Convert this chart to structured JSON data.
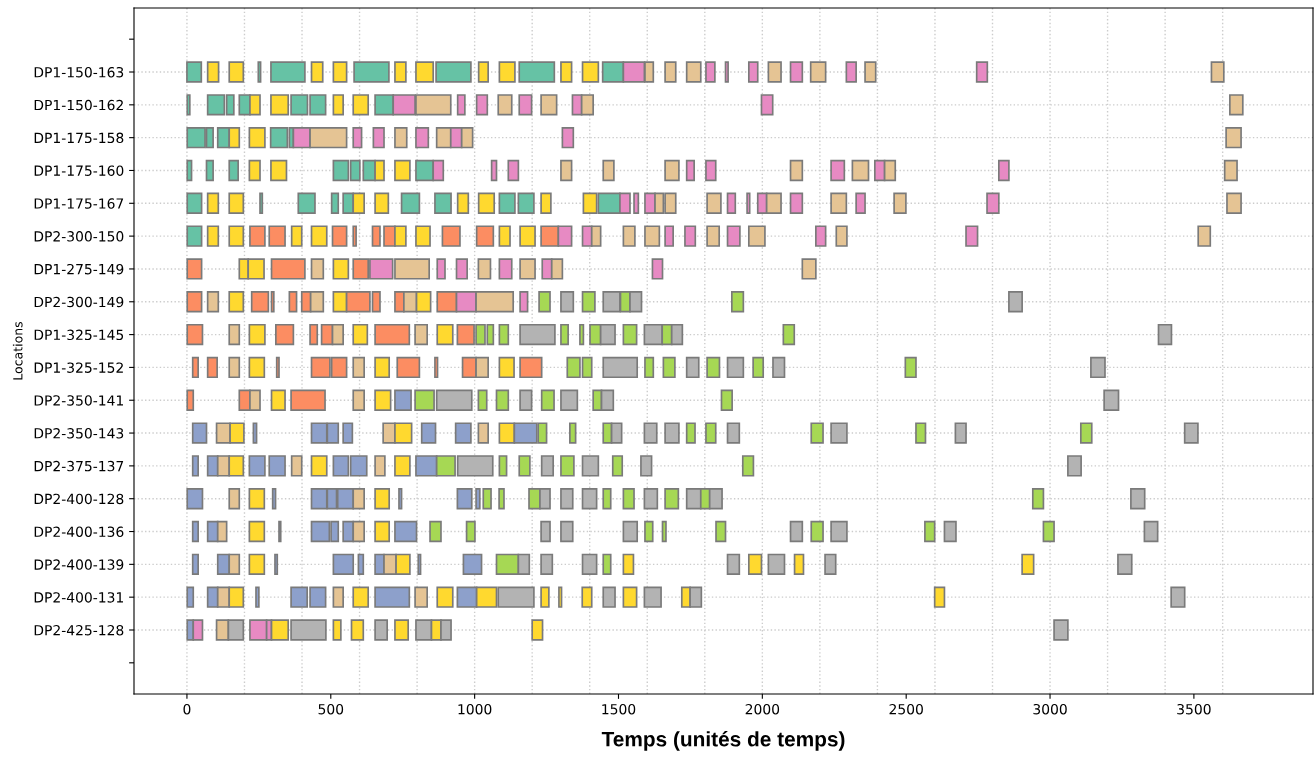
{
  "chart_data": {
    "type": "bar",
    "orientation": "horizontal",
    "xlabel": "Temps (unités de temps)",
    "ylabel": "Locations",
    "grid": true,
    "categories": [
      null,
      "DP1-150-163",
      "DP1-150-162",
      "DP1-175-158",
      "DP1-175-160",
      "DP1-175-167",
      "DP2-300-150",
      "DP1-275-149",
      "DP2-300-149",
      "DP1-325-145",
      "DP1-325-152",
      "DP2-350-141",
      "DP2-350-143",
      "DP2-375-137",
      "DP2-400-128",
      "DP2-400-136",
      "DP2-400-139",
      "DP2-400-131",
      "DP2-425-128",
      null
    ],
    "xlim": [
      -184,
      3914
    ],
    "xticks": [
      0,
      500,
      1000,
      1500,
      2000,
      2500,
      3000,
      3500,
      {
        "value": 0,
        "label": null
      },
      {
        "value": 200,
        "label": null
      },
      {
        "value": 400,
        "label": null
      },
      {
        "value": 600,
        "label": null
      },
      {
        "value": 800,
        "label": null
      },
      {
        "value": 1000,
        "label": null
      },
      {
        "value": 1200,
        "label": null
      },
      {
        "value": 1400,
        "label": null
      },
      {
        "value": 1600,
        "label": null
      },
      {
        "value": 1800,
        "label": null
      },
      {
        "value": 2000,
        "label": null
      },
      {
        "value": 2200,
        "label": null
      },
      {
        "value": 2400,
        "label": null
      },
      {
        "value": 2600,
        "label": null
      },
      {
        "value": 2800,
        "label": null
      },
      {
        "value": 3000,
        "label": null
      },
      {
        "value": 3200,
        "label": null
      },
      {
        "value": 3400,
        "label": null
      },
      {
        "value": 3600,
        "label": null
      }
    ],
    "series": [
      {
        "base": [
          null,
          0,
          1,
          1,
          1,
          1,
          1,
          1,
          1,
          1,
          20,
          1,
          20,
          20,
          1,
          20,
          20,
          1,
          1,
          null
        ],
        "values": [
          null,
          50,
          9,
          62,
          15,
          50,
          50,
          50,
          50,
          53,
          19,
          21,
          48,
          19,
          53,
          19,
          19,
          21,
          21,
          null
        ],
        "colors": [
          null,
          "#66c2a5",
          "#66c2a5",
          "#66c2a5",
          "#66c2a5",
          "#66c2a5",
          "#66c2a5",
          "#fc8d62",
          "#fc8d62",
          "#fc8d62",
          "#fc8d62",
          "#fc8d62",
          "#8da0cb",
          "#8da0cb",
          "#8da0cb",
          "#8da0cb",
          "#8da0cb",
          "#8da0cb",
          "#8da0cb",
          null
        ]
      },
      {
        "base": [
          null,
          72,
          72,
          68,
          68,
          72,
          72,
          182,
          72,
          147,
          72,
          182,
          103,
          72,
          147,
          72,
          107,
          72,
          22,
          null
        ],
        "values": [
          null,
          38,
          58,
          23,
          23,
          37,
          37,
          31,
          37,
          35,
          33,
          37,
          47,
          35,
          35,
          35,
          40,
          35,
          32,
          null
        ],
        "colors": [
          null,
          "#ffd92f",
          "#66c2a5",
          "#66c2a5",
          "#66c2a5",
          "#ffd92f",
          "#ffd92f",
          "#ffd92f",
          "#e5c494",
          "#e5c494",
          "#fc8d62",
          "#fc8d62",
          "#e5c494",
          "#8da0cb",
          "#e5c494",
          "#8da0cb",
          "#8da0cb",
          "#8da0cb",
          "#e78ac3",
          null
        ]
      },
      {
        "base": [
          null,
          147,
          138,
          107,
          147,
          147,
          147,
          213,
          147,
          217,
          147,
          219,
          150,
          107,
          217,
          107,
          147,
          107,
          103,
          null
        ],
        "values": [
          null,
          49,
          25,
          40,
          31,
          49,
          49,
          55,
          49,
          54,
          35,
          35,
          48,
          40,
          52,
          31,
          35,
          40,
          41,
          null
        ],
        "colors": [
          null,
          "#ffd92f",
          "#66c2a5",
          "#66c2a5",
          "#66c2a5",
          "#ffd92f",
          "#ffd92f",
          "#ffd92f",
          "#ffd92f",
          "#ffd92f",
          "#e5c494",
          "#e5c494",
          "#ffd92f",
          "#e5c494",
          "#ffd92f",
          "#e5c494",
          "#e5c494",
          "#e5c494",
          "#e5c494",
          null
        ]
      },
      {
        "base": [
          null,
          248,
          182,
          147,
          217,
          254,
          219,
          294,
          225,
          309,
          217,
          294,
          231,
          147,
          298,
          217,
          217,
          147,
          144,
          null
        ],
        "values": [
          null,
          8,
          37,
          35,
          37,
          8,
          52,
          116,
          58,
          61,
          52,
          47,
          11,
          49,
          10,
          52,
          52,
          49,
          52,
          null
        ],
        "colors": [
          null,
          "#66c2a5",
          "#66c2a5",
          "#ffd92f",
          "#ffd92f",
          "#66c2a5",
          "#fc8d62",
          "#fc8d62",
          "#fc8d62",
          "#fc8d62",
          "#ffd92f",
          "#ffd92f",
          "#8da0cb",
          "#ffd92f",
          "#8da0cb",
          "#ffd92f",
          "#ffd92f",
          "#ffd92f",
          "#b3b3b3",
          null
        ]
      },
      {
        "base": [
          null,
          292,
          219,
          217,
          292,
          387,
          286,
          433,
          294,
          428,
          312,
          362,
          433,
          217,
          433,
          320,
          306,
          240,
          219,
          null
        ],
        "values": [
          null,
          118,
          35,
          54,
          54,
          58,
          55,
          41,
          8,
          25,
          8,
          118,
          53,
          54,
          53,
          6,
          8,
          10,
          58,
          null
        ],
        "colors": [
          null,
          "#66c2a5",
          "#ffd92f",
          "#ffd92f",
          "#ffd92f",
          "#66c2a5",
          "#fc8d62",
          "#e5c494",
          "#fc8d62",
          "#fc8d62",
          "#fc8d62",
          "#fc8d62",
          "#8da0cb",
          "#8da0cb",
          "#8da0cb",
          "#8da0cb",
          "#8da0cb",
          "#8da0cb",
          "#e78ac3",
          null
        ]
      },
      {
        "base": [
          null,
          433,
          292,
          291,
          509,
          503,
          364,
          509,
          356,
          468,
          433,
          578,
          488,
          286,
          488,
          433,
          509,
          362,
          277,
          null
        ],
        "values": [
          null,
          39,
          60,
          58,
          52,
          23,
          35,
          52,
          25,
          38,
          64,
          38,
          38,
          55,
          32,
          62,
          69,
          56,
          17,
          null
        ],
        "colors": [
          null,
          "#ffd92f",
          "#ffd92f",
          "#66c2a5",
          "#66c2a5",
          "#66c2a5",
          "#ffd92f",
          "#ffd92f",
          "#fc8d62",
          "#fc8d62",
          "#fc8d62",
          "#e5c494",
          "#8da0cb",
          "#8da0cb",
          "#8da0cb",
          "#8da0cb",
          "#8da0cb",
          "#8da0cb",
          "#e78ac3",
          null
        ]
      },
      {
        "base": [
          null,
          509,
          362,
          356,
          569,
          543,
          433,
          578,
          399,
          506,
          503,
          654,
          543,
          364,
          524,
          501,
          596,
          428,
          294,
          null
        ],
        "values": [
          null,
          46,
          57,
          14,
          32,
          35,
          53,
          52,
          31,
          37,
          52,
          54,
          32,
          35,
          54,
          25,
          17,
          54,
          58,
          null
        ],
        "colors": [
          null,
          "#ffd92f",
          "#66c2a5",
          "#66c2a5",
          "#66c2a5",
          "#66c2a5",
          "#ffd92f",
          "#fc8d62",
          "#fc8d62",
          "#e5c494",
          "#fc8d62",
          "#ffd92f",
          "#8da0cb",
          "#e5c494",
          "#8da0cb",
          "#8da0cb",
          "#8da0cb",
          "#8da0cb",
          "#ffd92f",
          null
        ]
      },
      {
        "base": [
          null,
          581,
          428,
          370,
          613,
          578,
          506,
          636,
          430,
          578,
          578,
          723,
          682,
          433,
          578,
          543,
          654,
          509,
          362,
          null
        ],
        "values": [
          null,
          121,
          54,
          58,
          41,
          38,
          49,
          79,
          44,
          49,
          38,
          56,
          41,
          53,
          38,
          35,
          31,
          34,
          121,
          null
        ],
        "colors": [
          null,
          "#66c2a5",
          "#66c2a5",
          "#e78ac3",
          "#66c2a5",
          "#ffd92f",
          "#fc8d62",
          "#e78ac3",
          "#e5c494",
          "#ffd92f",
          "#e5c494",
          "#8da0cb",
          "#e5c494",
          "#ffd92f",
          "#e5c494",
          "#8da0cb",
          "#8da0cb",
          "#e5c494",
          "#b3b3b3",
          null
        ]
      },
      {
        "base": [
          null,
          723,
          509,
          428,
          654,
          654,
          578,
          723,
          509,
          654,
          654,
          793,
          723,
          509,
          654,
          578,
          685,
          578,
          509,
          null
        ],
        "values": [
          null,
          38,
          34,
          127,
          31,
          46,
          10,
          119,
          46,
          119,
          49,
          66,
          58,
          52,
          49,
          38,
          42,
          52,
          26,
          null
        ],
        "colors": [
          null,
          "#ffd92f",
          "#ffd92f",
          "#e5c494",
          "#ffd92f",
          "#ffd92f",
          "#fc8d62",
          "#e5c494",
          "#ffd92f",
          "#fc8d62",
          "#ffd92f",
          "#a6d854",
          "#ffd92f",
          "#8da0cb",
          "#ffd92f",
          "#e5c494",
          "#e5c494",
          "#ffd92f",
          "#ffd92f",
          null
        ]
      },
      {
        "base": [
          null,
          796,
          578,
          578,
          723,
          746,
          645,
          870,
          555,
          793,
          731,
          868,
          816,
          569,
          737,
          654,
          727,
          654,
          572,
          null
        ],
        "values": [
          null,
          60,
          52,
          29,
          52,
          62,
          26,
          27,
          81,
          42,
          77,
          122,
          48,
          56,
          9,
          49,
          48,
          119,
          41,
          null
        ],
        "colors": [
          null,
          "#ffd92f",
          "#ffd92f",
          "#e78ac3",
          "#ffd92f",
          "#66c2a5",
          "#fc8d62",
          "#e78ac3",
          "#fc8d62",
          "#e5c494",
          "#fc8d62",
          "#b3b3b3",
          "#8da0cb",
          "#8da0cb",
          "#8da0cb",
          "#ffd92f",
          "#ffd92f",
          "#8da0cb",
          "#ffd92f",
          null
        ]
      },
      {
        "base": [
          null,
          866,
          654,
          648,
          796,
          862,
          685,
          937,
          645,
          870,
          862,
          1013,
          934,
          654,
          940,
          723,
          804,
          793,
          654,
          null
        ],
        "values": [
          null,
          121,
          63,
          37,
          60,
          56,
          38,
          37,
          26,
          54,
          9,
          29,
          53,
          34,
          50,
          75,
          8,
          42,
          42,
          null
        ],
        "colors": [
          null,
          "#66c2a5",
          "#66c2a5",
          "#e78ac3",
          "#66c2a5",
          "#66c2a5",
          "#fc8d62",
          "#e78ac3",
          "#fc8d62",
          "#ffd92f",
          "#fc8d62",
          "#a6d854",
          "#8da0cb",
          "#e5c494",
          "#8da0cb",
          "#8da0cb",
          "#8da0cb",
          "#e5c494",
          "#b3b3b3",
          null
        ]
      },
      {
        "base": [
          null,
          1014,
          717,
          723,
          856,
          941,
          723,
          1013,
          723,
          940,
          958,
          1076,
          1013,
          723,
          1005,
          845,
          961,
          870,
          723,
          null
        ],
        "values": [
          null,
          33,
          76,
          41,
          35,
          37,
          38,
          42,
          31,
          58,
          47,
          41,
          34,
          52,
          13,
          38,
          63,
          54,
          46,
          null
        ],
        "colors": [
          null,
          "#ffd92f",
          "#e78ac3",
          "#e5c494",
          "#e78ac3",
          "#ffd92f",
          "#ffd92f",
          "#e5c494",
          "#fc8d62",
          "#fc8d62",
          "#fc8d62",
          "#a6d854",
          "#e5c494",
          "#ffd92f",
          "#8da0cb",
          "#a6d854",
          "#8da0cb",
          "#ffd92f",
          "#ffd92f",
          null
        ]
      },
      {
        "base": [
          null,
          1086,
          796,
          796,
          1059,
          1014,
          796,
          1086,
          754,
          1005,
          1005,
          1158,
          1086,
          796,
          1030,
          972,
          1076,
          940,
          796,
          null
        ],
        "values": [
          null,
          54,
          121,
          43,
          17,
          54,
          49,
          43,
          44,
          31,
          42,
          40,
          52,
          72,
          27,
          29,
          76,
          67,
          54,
          null
        ],
        "colors": [
          null,
          "#ffd92f",
          "#e5c494",
          "#e78ac3",
          "#e78ac3",
          "#ffd92f",
          "#ffd92f",
          "#e78ac3",
          "#e5c494",
          "#a6d854",
          "#e5c494",
          "#b3b3b3",
          "#ffd92f",
          "#8da0cb",
          "#a6d854",
          "#a6d854",
          "#a6d854",
          "#8da0cb",
          "#b3b3b3",
          null
        ]
      },
      {
        "base": [
          null,
          1155,
          941,
          868,
          1117,
          1086,
          888,
          1158,
          798,
          1044,
          1086,
          1233,
          1138,
          868,
          1085,
          1231,
          1152,
          1007,
          850,
          null
        ],
        "values": [
          null,
          122,
          25,
          49,
          35,
          54,
          61,
          52,
          49,
          21,
          51,
          43,
          78,
          64,
          17,
          31,
          38,
          69,
          33,
          null
        ],
        "colors": [
          null,
          "#66c2a5",
          "#e78ac3",
          "#e5c494",
          "#e78ac3",
          "#66c2a5",
          "#fc8d62",
          "#e5c494",
          "#ffd92f",
          "#a6d854",
          "#ffd92f",
          "#a6d854",
          "#8da0cb",
          "#a6d854",
          "#a6d854",
          "#b3b3b3",
          "#b3b3b3",
          "#ffd92f",
          "#ffd92f",
          null
        ]
      },
      {
        "base": [
          null,
          1300,
          1007,
          917,
          1300,
          1152,
          1007,
          1235,
          870,
          1086,
          1158,
          1300,
          1221,
          941,
          1189,
          1300,
          1231,
          1082,
          883,
          null
        ],
        "values": [
          null,
          37,
          37,
          38,
          37,
          54,
          58,
          33,
          67,
          31,
          75,
          57,
          29,
          122,
          38,
          41,
          39,
          124,
          35,
          null
        ],
        "colors": [
          null,
          "#ffd92f",
          "#e78ac3",
          "#e78ac3",
          "#e5c494",
          "#66c2a5",
          "#fc8d62",
          "#e78ac3",
          "#fc8d62",
          "#a6d854",
          "#fc8d62",
          "#b3b3b3",
          "#a6d854",
          "#b3b3b3",
          "#a6d854",
          "#b3b3b3",
          "#b3b3b3",
          "#b3b3b3",
          "#b3b3b3",
          null
        ]
      },
      {
        "base": [
          null,
          1375,
          1082,
          955,
          1447,
          1231,
          1086,
          1268,
          937,
          1158,
          1322,
          1412,
          1331,
          1086,
          1227,
          1517,
          1375,
          1231,
          1200,
          null
        ],
        "values": [
          null,
          55,
          47,
          38,
          37,
          34,
          37,
          37,
          68,
          121,
          44,
          29,
          20,
          25,
          35,
          48,
          49,
          27,
          36,
          null
        ],
        "colors": [
          null,
          "#ffd92f",
          "#e5c494",
          "#e5c494",
          "#e5c494",
          "#ffd92f",
          "#ffd92f",
          "#e5c494",
          "#e78ac3",
          "#b3b3b3",
          "#a6d854",
          "#a6d854",
          "#a6d854",
          "#a6d854",
          "#b3b3b3",
          "#b3b3b3",
          "#b3b3b3",
          "#ffd92f",
          "#ffd92f",
          null
        ]
      },
      {
        "base": [
          null,
          1445,
          1155,
          1305,
          1662,
          1378,
          1158,
          1618,
          1005,
          1300,
          1375,
          1441,
          1447,
          1155,
          1300,
          1592,
          1447,
          1293,
          3014,
          null
        ],
        "values": [
          null,
          72,
          43,
          38,
          48,
          46,
          52,
          35,
          129,
          25,
          32,
          41,
          29,
          37,
          41,
          27,
          26,
          9,
          48,
          null
        ],
        "colors": [
          null,
          "#66c2a5",
          "#e78ac3",
          "#e78ac3",
          "#e5c494",
          "#ffd92f",
          "#ffd92f",
          "#e78ac3",
          "#e5c494",
          "#a6d854",
          "#a6d854",
          "#b3b3b3",
          "#a6d854",
          "#a6d854",
          "#b3b3b3",
          "#a6d854",
          "#a6d854",
          "#ffd92f",
          "#b3b3b3",
          null
        ]
      },
      {
        "base": [
          null,
          1517,
          1231,
          3612,
          1737,
          1430,
          1231,
          2139,
          1158,
          1366,
          1447,
          1858,
          1476,
          1233,
          1375,
          1653,
          1517,
          1374,
          null,
          null
        ],
        "values": [
          null,
          73,
          54,
          52,
          26,
          75,
          60,
          47,
          26,
          12,
          118,
          37,
          35,
          40,
          49,
          12,
          35,
          33,
          null,
          null
        ],
        "colors": [
          null,
          "#e78ac3",
          "#e5c494",
          "#e5c494",
          "#e78ac3",
          "#66c2a5",
          "#fc8d62",
          "#e5c494",
          "#e78ac3",
          "#a6d854",
          "#b3b3b3",
          "#a6d854",
          "#b3b3b3",
          "#b3b3b3",
          "#b3b3b3",
          "#a6d854",
          "#ffd92f",
          "#ffd92f",
          null,
          null
        ]
      },
      {
        "base": [
          null,
          1592,
          1340,
          null,
          1804,
          1505,
          1291,
          null,
          1224,
          1401,
          1592,
          3188,
          1590,
          1300,
          1447,
          1839,
          1879,
          1447,
          null,
          null
        ],
        "values": [
          null,
          29,
          32,
          null,
          34,
          35,
          46,
          null,
          38,
          37,
          29,
          50,
          43,
          45,
          26,
          33,
          41,
          41,
          null,
          null
        ],
        "colors": [
          null,
          "#e5c494",
          "#e78ac3",
          null,
          "#e78ac3",
          "#e78ac3",
          "#e78ac3",
          null,
          "#a6d854",
          "#a6d854",
          "#a6d854",
          "#b3b3b3",
          "#b3b3b3",
          "#a6d854",
          "#a6d854",
          "#a6d854",
          "#b3b3b3",
          "#b3b3b3",
          null,
          null
        ]
      },
      {
        "base": [
          null,
          1662,
          1372,
          null,
          2098,
          1554,
          1375,
          null,
          1300,
          1438,
          1656,
          null,
          1662,
          1375,
          1517,
          2098,
          1953,
          1517,
          null,
          null
        ],
        "values": [
          null,
          37,
          40,
          null,
          41,
          15,
          32,
          null,
          43,
          50,
          40,
          null,
          48,
          55,
          37,
          41,
          44,
          46,
          null,
          null
        ],
        "colors": [
          null,
          "#e5c494",
          "#e5c494",
          null,
          "#e5c494",
          "#e78ac3",
          "#e78ac3",
          null,
          "#b3b3b3",
          "#b3b3b3",
          "#a6d854",
          null,
          "#b3b3b3",
          "#b3b3b3",
          "#a6d854",
          "#b3b3b3",
          "#ffd92f",
          "#ffd92f",
          null,
          null
        ]
      },
      {
        "base": [
          null,
          1737,
          1997,
          null,
          2239,
          1592,
          1407,
          null,
          1375,
          1517,
          1737,
          null,
          1737,
          1480,
          1590,
          2170,
          2021,
          1590,
          null,
          null
        ],
        "values": [
          null,
          49,
          39,
          null,
          46,
          35,
          31,
          null,
          43,
          46,
          42,
          null,
          29,
          33,
          45,
          41,
          56,
          58,
          null,
          null
        ],
        "colors": [
          null,
          "#e5c494",
          "#e78ac3",
          null,
          "#e78ac3",
          "#e78ac3",
          "#e5c494",
          null,
          "#a6d854",
          "#a6d854",
          "#b3b3b3",
          null,
          "#a6d854",
          "#a6d854",
          "#b3b3b3",
          "#a6d854",
          "#b3b3b3",
          "#b3b3b3",
          null,
          null
        ]
      },
      {
        "base": [
          null,
          1804,
          3625,
          null,
          2313,
          1627,
          1517,
          null,
          1447,
          1590,
          1808,
          null,
          1804,
          1578,
          1662,
          2239,
          2112,
          1720,
          null,
          null
        ],
        "values": [
          null,
          31,
          45,
          null,
          56,
          29,
          40,
          null,
          58,
          62,
          43,
          null,
          34,
          37,
          46,
          55,
          31,
          29,
          null,
          null
        ],
        "colors": [
          null,
          "#e78ac3",
          "#e5c494",
          null,
          "#e5c494",
          "#e5c494",
          "#e5c494",
          null,
          "#b3b3b3",
          "#b3b3b3",
          "#a6d854",
          null,
          "#a6d854",
          "#b3b3b3",
          "#a6d854",
          "#b3b3b3",
          "#ffd92f",
          "#ffd92f",
          null,
          null
        ]
      },
      {
        "base": [
          null,
          1872,
          null,
          null,
          2391,
          1662,
          1592,
          null,
          1507,
          1652,
          1879,
          null,
          1879,
          1932,
          1737,
          2565,
          2218,
          1749,
          null,
          null
        ],
        "values": [
          null,
          9,
          null,
          null,
          34,
          37,
          50,
          null,
          33,
          33,
          55,
          null,
          41,
          37,
          49,
          34,
          37,
          39,
          null,
          null
        ],
        "colors": [
          null,
          "#e78ac3",
          null,
          null,
          "#e78ac3",
          "#e5c494",
          "#e5c494",
          null,
          "#a6d854",
          "#a6d854",
          "#b3b3b3",
          null,
          "#b3b3b3",
          "#a6d854",
          "#b3b3b3",
          "#a6d854",
          "#b3b3b3",
          "#b3b3b3",
          null,
          null
        ]
      },
      {
        "base": [
          null,
          1953,
          null,
          null,
          2425,
          1808,
          1662,
          null,
          1540,
          1685,
          1968,
          null,
          2170,
          3062,
          1786,
          2633,
          2903,
          2599,
          null,
          null
        ],
        "values": [
          null,
          31,
          null,
          null,
          37,
          48,
          28,
          null,
          40,
          37,
          35,
          null,
          41,
          46,
          31,
          40,
          40,
          34,
          null,
          null
        ],
        "colors": [
          null,
          "#e78ac3",
          null,
          null,
          "#e5c494",
          "#e5c494",
          "#e78ac3",
          null,
          "#b3b3b3",
          "#b3b3b3",
          "#a6d854",
          null,
          "#a6d854",
          "#b3b3b3",
          "#a6d854",
          "#b3b3b3",
          "#ffd92f",
          "#ffd92f",
          null,
          null
        ]
      },
      {
        "base": [
          null,
          2021,
          null,
          null,
          2822,
          1879,
          1731,
          null,
          1894,
          2073,
          2037,
          null,
          2239,
          null,
          1817,
          2977,
          3236,
          3421,
          null,
          null
        ],
        "values": [
          null,
          44,
          null,
          null,
          35,
          27,
          36,
          null,
          40,
          38,
          40,
          null,
          55,
          null,
          43,
          37,
          48,
          47,
          null,
          null
        ],
        "colors": [
          null,
          "#e5c494",
          null,
          null,
          "#e78ac3",
          "#e78ac3",
          "#e78ac3",
          null,
          "#a6d854",
          "#a6d854",
          "#b3b3b3",
          null,
          "#b3b3b3",
          null,
          "#b3b3b3",
          "#a6d854",
          "#b3b3b3",
          "#b3b3b3",
          null,
          null
        ]
      },
      {
        "base": [
          null,
          2098,
          null,
          null,
          3607,
          1947,
          1808,
          null,
          2857,
          3377,
          2497,
          null,
          2534,
          null,
          2940,
          3328,
          null,
          null,
          null,
          null
        ],
        "values": [
          null,
          41,
          null,
          null,
          43,
          9,
          42,
          null,
          46,
          45,
          37,
          null,
          33,
          null,
          37,
          46,
          null,
          null,
          null,
          null
        ],
        "colors": [
          null,
          "#e78ac3",
          null,
          null,
          "#e5c494",
          "#e78ac3",
          "#e5c494",
          null,
          "#b3b3b3",
          "#b3b3b3",
          "#a6d854",
          null,
          "#a6d854",
          null,
          "#a6d854",
          "#b3b3b3",
          null,
          null,
          null,
          null
        ]
      },
      {
        "base": [
          null,
          2168,
          null,
          null,
          null,
          1984,
          1879,
          null,
          null,
          null,
          3142,
          null,
          2671,
          null,
          3281,
          null,
          null,
          null,
          null,
          null
        ],
        "values": [
          null,
          52,
          null,
          null,
          null,
          31,
          43,
          null,
          null,
          null,
          49,
          null,
          37,
          null,
          48,
          null,
          null,
          null,
          null,
          null
        ],
        "colors": [
          null,
          "#e5c494",
          null,
          null,
          null,
          "#e78ac3",
          "#e78ac3",
          null,
          null,
          null,
          "#b3b3b3",
          null,
          "#b3b3b3",
          null,
          "#b3b3b3",
          null,
          null,
          null,
          null,
          null
        ]
      },
      {
        "base": [
          null,
          2292,
          null,
          null,
          null,
          2015,
          1953,
          null,
          null,
          null,
          null,
          null,
          3107,
          null,
          null,
          null,
          null,
          null,
          null,
          null
        ],
        "values": [
          null,
          34,
          null,
          null,
          null,
          50,
          56,
          null,
          null,
          null,
          null,
          null,
          38,
          null,
          null,
          null,
          null,
          null,
          null,
          null
        ],
        "colors": [
          null,
          "#e78ac3",
          null,
          null,
          null,
          "#e5c494",
          "#e5c494",
          null,
          null,
          null,
          null,
          null,
          "#a6d854",
          null,
          null,
          null,
          null,
          null,
          null,
          null
        ]
      },
      {
        "base": [
          null,
          2357,
          null,
          null,
          null,
          2098,
          2186,
          null,
          null,
          null,
          null,
          null,
          3468,
          null,
          null,
          null,
          null,
          null,
          null,
          null
        ],
        "values": [
          null,
          37,
          null,
          null,
          null,
          41,
          34,
          null,
          null,
          null,
          null,
          null,
          46,
          null,
          null,
          null,
          null,
          null,
          null,
          null
        ],
        "colors": [
          null,
          "#e5c494",
          null,
          null,
          null,
          "#e78ac3",
          "#e78ac3",
          null,
          null,
          null,
          null,
          null,
          "#b3b3b3",
          null,
          null,
          null,
          null,
          null,
          null,
          null
        ]
      },
      {
        "base": [
          null,
          2745,
          null,
          null,
          null,
          2239,
          2257,
          null,
          null,
          null,
          null,
          null,
          null,
          null,
          null,
          null,
          null,
          null,
          null,
          null
        ],
        "values": [
          null,
          37,
          null,
          null,
          null,
          53,
          37,
          null,
          null,
          null,
          null,
          null,
          null,
          null,
          null,
          null,
          null,
          null,
          null,
          null
        ],
        "colors": [
          null,
          "#e78ac3",
          null,
          null,
          null,
          "#e5c494",
          "#e5c494",
          null,
          null,
          null,
          null,
          null,
          null,
          null,
          null,
          null,
          null,
          null,
          null,
          null
        ]
      },
      {
        "base": [
          null,
          3561,
          null,
          null,
          null,
          2326,
          2708,
          null,
          null,
          null,
          null,
          null,
          null,
          null,
          null,
          null,
          null,
          null,
          null,
          null
        ],
        "values": [
          null,
          43,
          null,
          null,
          null,
          31,
          40,
          null,
          null,
          null,
          null,
          null,
          null,
          null,
          null,
          null,
          null,
          null,
          null,
          null
        ],
        "colors": [
          null,
          "#e5c494",
          null,
          null,
          null,
          "#e78ac3",
          "#e78ac3",
          null,
          null,
          null,
          null,
          null,
          null,
          null,
          null,
          null,
          null,
          null,
          null,
          null
        ]
      },
      {
        "base": [
          null,
          null,
          null,
          null,
          null,
          2458,
          3515,
          null,
          null,
          null,
          null,
          null,
          null,
          null,
          null,
          null,
          null,
          null,
          null,
          null
        ],
        "values": [
          null,
          null,
          null,
          null,
          null,
          41,
          42,
          null,
          null,
          null,
          null,
          null,
          null,
          null,
          null,
          null,
          null,
          null,
          null,
          null
        ],
        "colors": [
          null,
          null,
          null,
          null,
          null,
          "#e5c494",
          "#e5c494",
          null,
          null,
          null,
          null,
          null,
          null,
          null,
          null,
          null,
          null,
          null,
          null,
          null
        ]
      },
      {
        "base": [
          null,
          null,
          null,
          null,
          null,
          2781,
          null,
          null,
          null,
          null,
          null,
          null,
          null,
          null,
          null,
          null,
          null,
          null,
          null,
          null
        ],
        "values": [
          null,
          null,
          null,
          null,
          null,
          41,
          null,
          null,
          null,
          null,
          null,
          null,
          null,
          null,
          null,
          null,
          null,
          null,
          null,
          null
        ],
        "colors": [
          null,
          null,
          null,
          null,
          null,
          "#e78ac3",
          null,
          null,
          null,
          null,
          null,
          null,
          null,
          null,
          null,
          null,
          null,
          null,
          null,
          null
        ]
      },
      {
        "base": [
          null,
          null,
          null,
          null,
          null,
          3615,
          null,
          null,
          null,
          null,
          null,
          null,
          null,
          null,
          null,
          null,
          null,
          null,
          null,
          null
        ],
        "values": [
          null,
          null,
          null,
          null,
          null,
          49,
          null,
          null,
          null,
          null,
          null,
          null,
          null,
          null,
          null,
          null,
          null,
          null,
          null,
          null
        ],
        "colors": [
          null,
          null,
          null,
          null,
          null,
          "#e5c494",
          null,
          null,
          null,
          null,
          null,
          null,
          null,
          null,
          null,
          null,
          null,
          null,
          null,
          null
        ]
      }
    ]
  }
}
